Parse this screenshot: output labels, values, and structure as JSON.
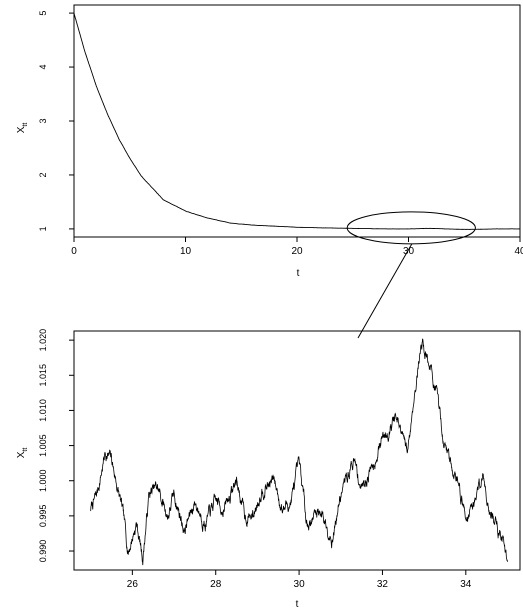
{
  "chart_data": [
    {
      "type": "line",
      "xlabel": "t",
      "ylabel": "X",
      "ylabel_sub": "tt",
      "xlim": [
        0,
        40
      ],
      "ylim": [
        0.85,
        5.15
      ],
      "xticks": [
        0,
        10,
        20,
        30,
        40
      ],
      "yticks": [
        1,
        2,
        3,
        4,
        5
      ],
      "series": [
        {
          "x": [
            0,
            1,
            2,
            3,
            4,
            5,
            6,
            8,
            10,
            12,
            14,
            16,
            18,
            20,
            22,
            25,
            28,
            30,
            32,
            35,
            38,
            40
          ],
          "y": [
            5.0,
            4.27,
            3.65,
            3.13,
            2.68,
            2.31,
            1.99,
            1.54,
            1.33,
            1.2,
            1.11,
            1.07,
            1.05,
            1.03,
            1.02,
            1.01,
            1.0,
            1.0,
            1.01,
            0.99,
            1.0,
            1.0
          ]
        }
      ],
      "grid": false,
      "annotation": "ellipse highlighting t ≈ 25 to 35"
    },
    {
      "type": "line",
      "xlabel": "t",
      "ylabel": "X",
      "ylabel_sub": "tt",
      "xlim": [
        24.6,
        35.3
      ],
      "ylim": [
        0.9873,
        1.0213
      ],
      "xticks": [
        26,
        28,
        30,
        32,
        34
      ],
      "yticks": [
        0.99,
        0.995,
        1.0,
        1.005,
        1.01,
        1.015,
        1.02
      ],
      "ytick_labels": [
        "0.990",
        "0.995",
        "1.000",
        "1.005",
        "1.010",
        "1.015",
        "1.020"
      ],
      "series": [
        {
          "x": [
            25.0,
            25.15,
            25.35,
            25.5,
            25.75,
            25.9,
            26.1,
            26.25,
            26.4,
            26.6,
            26.85,
            27.0,
            27.25,
            27.5,
            27.75,
            28.0,
            28.2,
            28.5,
            28.7,
            28.9,
            29.1,
            29.4,
            29.6,
            29.8,
            30.0,
            30.2,
            30.5,
            30.8,
            31.0,
            31.3,
            31.5,
            31.8,
            32.0,
            32.3,
            32.6,
            32.8,
            32.95,
            33.2,
            33.5,
            33.8,
            34.0,
            34.2,
            34.4,
            34.6,
            34.8,
            35.0
          ],
          "y": [
            0.996,
            0.998,
            1.004,
            1.003,
            0.996,
            0.99,
            0.994,
            0.989,
            0.998,
            0.999,
            0.995,
            0.998,
            0.993,
            0.997,
            0.994,
            0.997,
            0.996,
            1.0,
            0.995,
            0.995,
            0.999,
            1.0,
            0.996,
            0.997,
            1.002,
            0.994,
            0.996,
            0.992,
            0.998,
            1.003,
            0.999,
            1.003,
            1.006,
            1.009,
            1.004,
            1.014,
            1.02,
            1.015,
            1.005,
            1.0,
            0.995,
            0.997,
            1.001,
            0.995,
            0.993,
            0.989
          ]
        }
      ],
      "grid": false
    }
  ]
}
